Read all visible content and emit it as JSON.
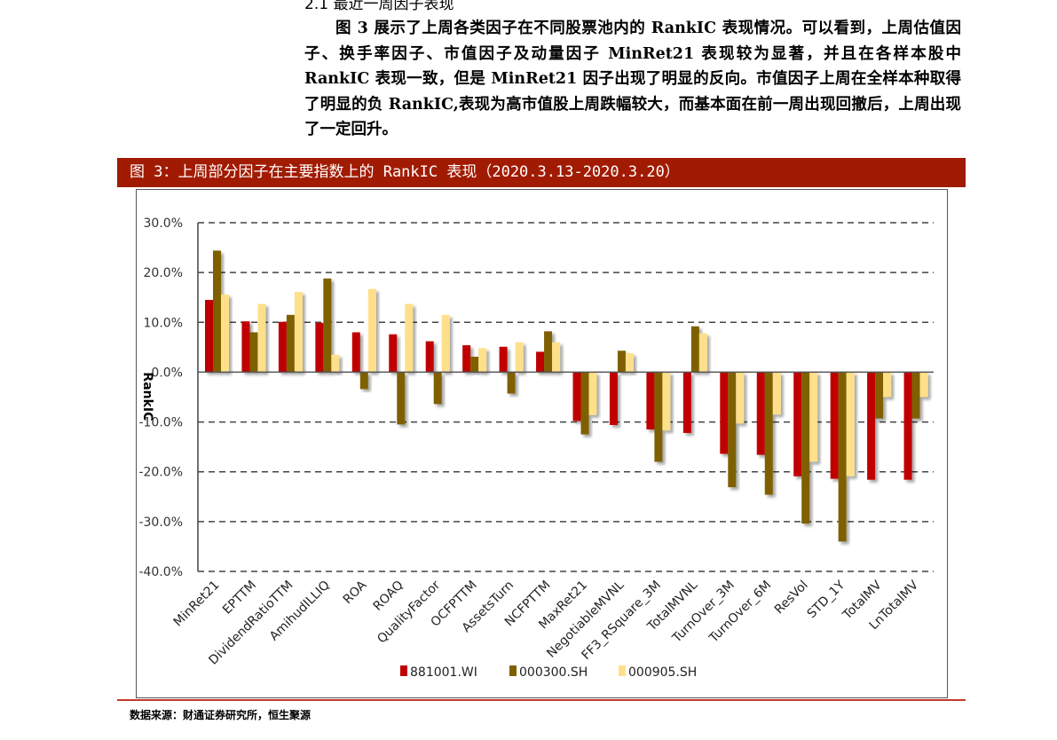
{
  "section_heading": "2.1 最近一周因子表现",
  "paragraph": "图 3 展示了上周各类因子在不同股票池内的 RankIC 表现情况。可以看到，上周估值因子、换手率因子、市值因子及动量因子 MinRet21 表现较为显著，并且在各样本股中 RankIC 表现一致，但是 MinRet21 因子出现了明显的反向。市值因子上周在全样本种取得了明显的负 RankIC,表现为高市值股上周跌幅较大，而基本面在前一周出现回撤后，上周出现了一定回升。",
  "figure_title": "图 3：上周部分因子在主要指数上的 RankIC 表现（2020.3.13-2020.3.20）",
  "source": "数据来源：财通证券研究所，恒生聚源",
  "chart_data": {
    "type": "bar",
    "ylabel": "RankIC",
    "xlabel": "",
    "ylim": [
      -40,
      30
    ],
    "yticks": [
      "30.0%",
      "20.0%",
      "10.0%",
      "0.0%",
      "-10.0%",
      "-20.0%",
      "-30.0%",
      "-40.0%"
    ],
    "grid": true,
    "legend": "bottom",
    "categories": [
      "MinRet21",
      "EPTTM",
      "DividendRatioTTM",
      "AmihudILLIQ",
      "ROA",
      "ROAQ",
      "QualityFactor",
      "OCFPTTM",
      "AssetsTurn",
      "NCFPTTM",
      "MaxRet21",
      "NegotiableMVNL",
      "FF3_RSquare_3M",
      "TotalMVNL",
      "TurnOver_3M",
      "TurnOver_6M",
      "ResVol",
      "STD_1Y",
      "TotalMV",
      "LnTotalMV"
    ],
    "series": [
      {
        "name": "881001.WI",
        "color": "#c00000",
        "values": [
          14.5,
          10.2,
          10.1,
          9.9,
          8.0,
          7.6,
          6.2,
          5.4,
          5.1,
          4.1,
          -9.8,
          -10.6,
          -11.5,
          -12.2,
          -16.4,
          -16.6,
          -20.9,
          -21.4,
          -21.6,
          -21.6
        ]
      },
      {
        "name": "000300.SH",
        "color": "#7f6000",
        "values": [
          24.4,
          8.0,
          11.5,
          18.8,
          -3.4,
          -10.5,
          -6.4,
          3.1,
          -4.3,
          8.2,
          -12.5,
          4.3,
          -18.0,
          9.2,
          -23.1,
          -24.6,
          -30.4,
          -34.0,
          -9.3,
          -9.3
        ]
      },
      {
        "name": "000905.SH",
        "color": "#ffe08a",
        "values": [
          15.6,
          13.7,
          16.1,
          3.5,
          16.7,
          13.7,
          11.5,
          4.8,
          6.0,
          6.0,
          -8.6,
          3.8,
          -11.7,
          7.8,
          -10.3,
          -8.5,
          -18.0,
          -20.9,
          -5.0,
          -5.0
        ]
      }
    ]
  }
}
